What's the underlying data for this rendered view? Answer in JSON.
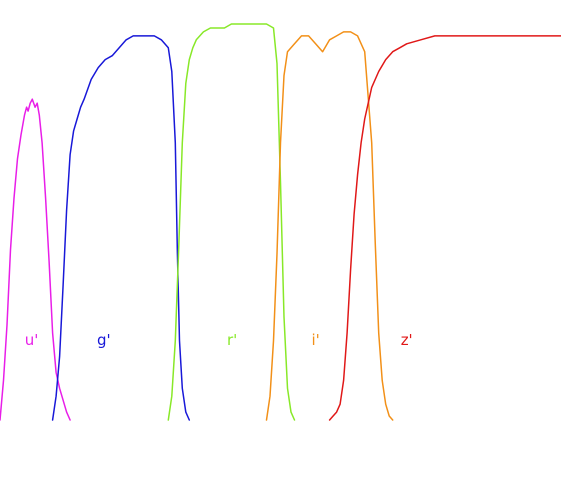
{
  "chart_data": {
    "type": "line",
    "title": "",
    "xlabel": "",
    "ylabel": "",
    "xlim": [
      3000,
      11000
    ],
    "ylim": [
      0,
      1
    ],
    "grid": false,
    "series": [
      {
        "name": "u'",
        "color": "#e81ee8",
        "x": [
          3000,
          3050,
          3100,
          3150,
          3200,
          3250,
          3300,
          3350,
          3380,
          3400,
          3430,
          3460,
          3500,
          3530,
          3560,
          3600,
          3650,
          3700,
          3750,
          3800,
          3850,
          3900,
          3950,
          4000
        ],
        "y": [
          0.0,
          0.1,
          0.24,
          0.43,
          0.56,
          0.66,
          0.72,
          0.77,
          0.79,
          0.78,
          0.8,
          0.81,
          0.79,
          0.8,
          0.77,
          0.7,
          0.56,
          0.4,
          0.22,
          0.12,
          0.08,
          0.05,
          0.02,
          0.0
        ]
      },
      {
        "name": "g'",
        "color": "#1818d8",
        "x": [
          3750,
          3800,
          3850,
          3900,
          3950,
          4000,
          4050,
          4100,
          4150,
          4200,
          4300,
          4400,
          4500,
          4600,
          4700,
          4800,
          4900,
          5000,
          5100,
          5200,
          5300,
          5400,
          5450,
          5500,
          5530,
          5560,
          5600,
          5650,
          5700
        ],
        "y": [
          0.0,
          0.06,
          0.16,
          0.34,
          0.53,
          0.67,
          0.73,
          0.76,
          0.79,
          0.81,
          0.86,
          0.89,
          0.91,
          0.92,
          0.94,
          0.96,
          0.97,
          0.97,
          0.97,
          0.97,
          0.96,
          0.94,
          0.88,
          0.7,
          0.42,
          0.2,
          0.08,
          0.02,
          0.0
        ]
      },
      {
        "name": "r'",
        "color": "#88e828",
        "x": [
          5400,
          5450,
          5500,
          5550,
          5600,
          5650,
          5700,
          5750,
          5800,
          5900,
          6000,
          6100,
          6200,
          6300,
          6400,
          6500,
          6600,
          6700,
          6800,
          6900,
          6950,
          7000,
          7050,
          7100,
          7150,
          7200
        ],
        "y": [
          0.0,
          0.06,
          0.2,
          0.44,
          0.7,
          0.85,
          0.91,
          0.94,
          0.96,
          0.98,
          0.99,
          0.99,
          0.99,
          1.0,
          1.0,
          1.0,
          1.0,
          1.0,
          1.0,
          0.99,
          0.9,
          0.6,
          0.26,
          0.08,
          0.02,
          0.0
        ]
      },
      {
        "name": "i'",
        "color": "#f29018",
        "x": [
          6800,
          6850,
          6900,
          6950,
          7000,
          7050,
          7100,
          7200,
          7300,
          7400,
          7500,
          7600,
          7700,
          7800,
          7900,
          8000,
          8100,
          8200,
          8300,
          8350,
          8400,
          8450,
          8500,
          8550,
          8600
        ],
        "y": [
          0.0,
          0.06,
          0.2,
          0.42,
          0.7,
          0.87,
          0.93,
          0.95,
          0.97,
          0.97,
          0.95,
          0.93,
          0.96,
          0.97,
          0.98,
          0.98,
          0.97,
          0.93,
          0.7,
          0.45,
          0.22,
          0.1,
          0.04,
          0.01,
          0.0
        ]
      },
      {
        "name": "z'",
        "color": "#e01818",
        "x": [
          7700,
          7750,
          7800,
          7850,
          7900,
          7950,
          8000,
          8050,
          8100,
          8150,
          8200,
          8250,
          8300,
          8400,
          8500,
          8600,
          8700,
          8800,
          9000,
          9200,
          9500,
          10000,
          10500,
          11000
        ],
        "y": [
          0.0,
          0.01,
          0.02,
          0.04,
          0.1,
          0.22,
          0.38,
          0.52,
          0.62,
          0.7,
          0.76,
          0.8,
          0.84,
          0.88,
          0.91,
          0.93,
          0.94,
          0.95,
          0.96,
          0.97,
          0.97,
          0.97,
          0.97,
          0.97
        ]
      }
    ],
    "annotations": [
      {
        "text": "u'",
        "x": 3450,
        "y": 0.19,
        "color": "#e81ee8"
      },
      {
        "text": "g'",
        "x": 4480,
        "y": 0.19,
        "color": "#1818d8"
      },
      {
        "text": "r'",
        "x": 6310,
        "y": 0.19,
        "color": "#88e828"
      },
      {
        "text": "i'",
        "x": 7500,
        "y": 0.19,
        "color": "#f29018"
      },
      {
        "text": "z'",
        "x": 8800,
        "y": 0.19,
        "color": "#e01818"
      }
    ]
  }
}
